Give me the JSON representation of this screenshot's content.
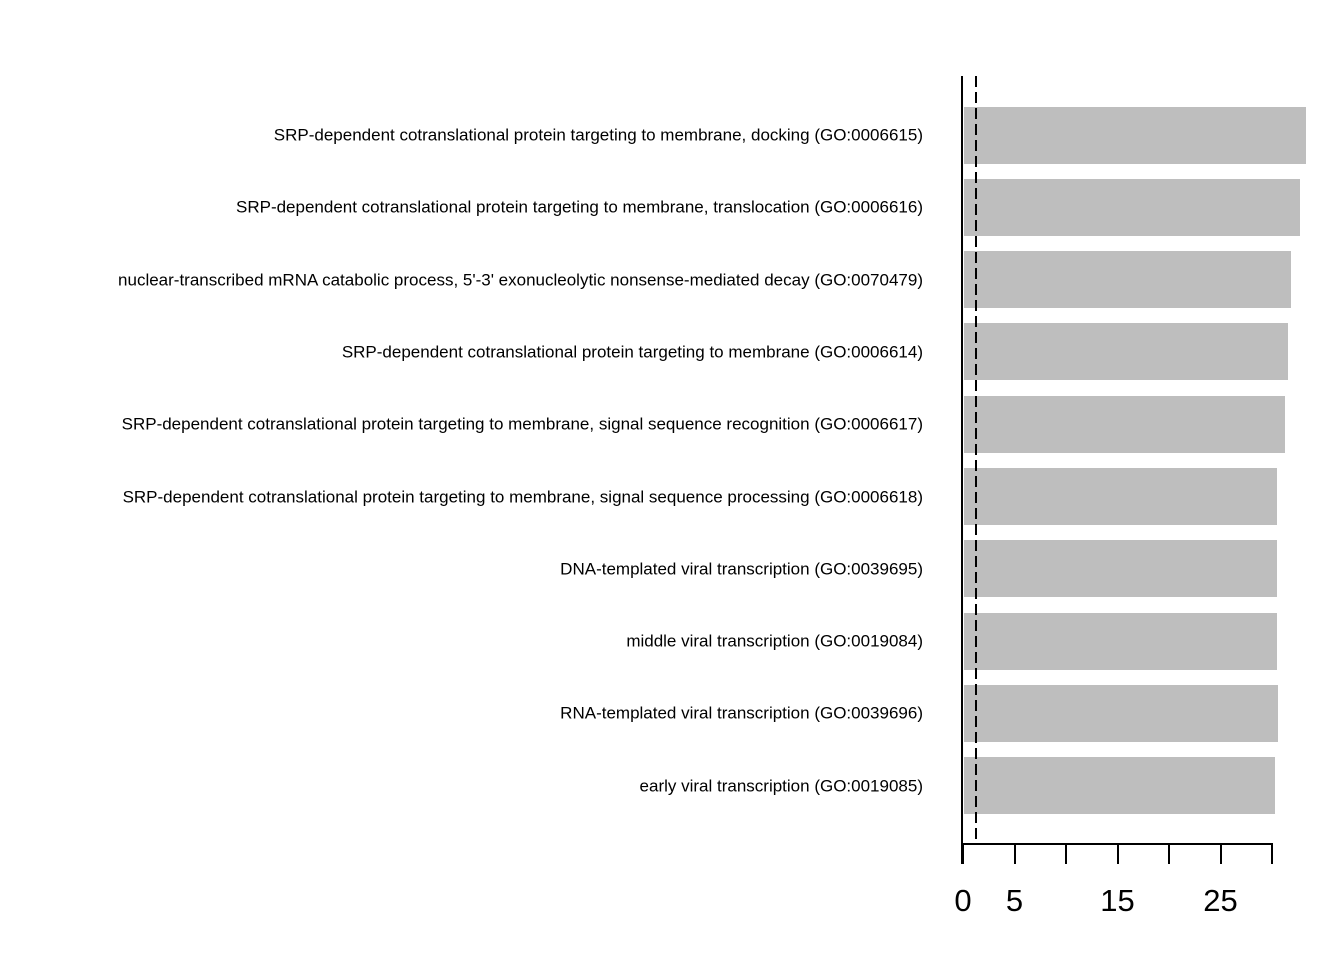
{
  "chart_data": {
    "type": "bar",
    "orientation": "horizontal",
    "title": "",
    "xlabel": "",
    "ylabel": "",
    "categories": [
      "SRP-dependent cotranslational protein targeting to membrane, docking (GO:0006615)",
      "SRP-dependent cotranslational protein targeting to membrane, translocation (GO:0006616)",
      "nuclear-transcribed mRNA catabolic process, 5'-3' exonucleolytic nonsense-mediated decay (GO:0070479)",
      "SRP-dependent cotranslational protein targeting to membrane (GO:0006614)",
      "SRP-dependent cotranslational protein targeting to membrane, signal sequence recognition (GO:0006617)",
      "SRP-dependent cotranslational protein targeting to membrane, signal sequence processing (GO:0006618)",
      "DNA-templated viral transcription (GO:0039695)",
      "middle viral transcription (GO:0019084)",
      "RNA-templated viral transcription (GO:0039696)",
      "early viral transcription (GO:0019085)"
    ],
    "values": [
      33.2,
      32.6,
      31.7,
      31.5,
      31.2,
      30.4,
      30.4,
      30.4,
      30.5,
      30.2
    ],
    "x_axis": {
      "ticks": [
        0,
        5,
        10,
        15,
        20,
        25,
        30
      ],
      "labeled_ticks": [
        {
          "value": 0,
          "label": "0"
        },
        {
          "value": 5,
          "label": "5"
        },
        {
          "value": 15,
          "label": "15"
        },
        {
          "value": 25,
          "label": "25"
        }
      ],
      "range": [
        0,
        33.5
      ]
    },
    "threshold_line": {
      "x": 1.3,
      "style": "dashed",
      "color": "#000000"
    },
    "bar_color": "#bebebe",
    "axis_color": "#000000",
    "background_color": "#ffffff",
    "grid": false,
    "legend": null
  }
}
